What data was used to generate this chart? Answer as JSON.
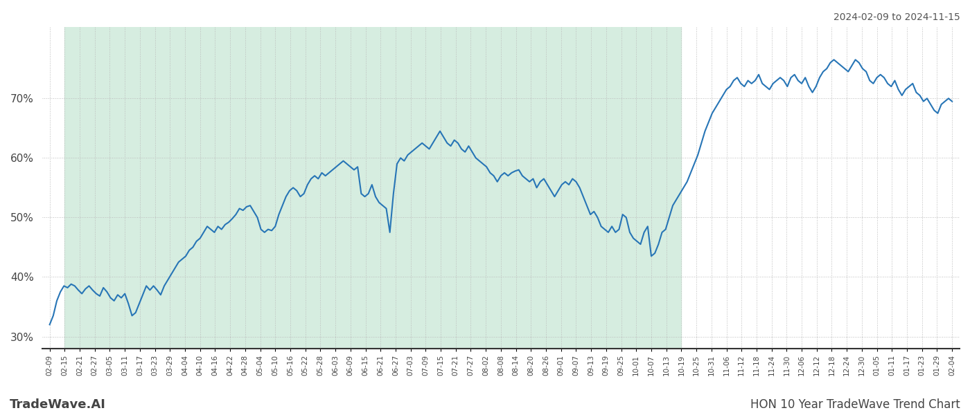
{
  "title_top_right": "2024-02-09 to 2024-11-15",
  "title_bottom_right": "HON 10 Year TradeWave Trend Chart",
  "title_bottom_left": "TradeWave.AI",
  "background_color": "#ffffff",
  "shaded_region_color": "#d6ede0",
  "line_color": "#2775b6",
  "line_width": 1.5,
  "ylim": [
    28,
    82
  ],
  "yticks": [
    30,
    40,
    50,
    60,
    70
  ],
  "grid_color": "#bbbbbb",
  "shaded_x_start_label": "02-15",
  "shaded_x_end_label": "10-19",
  "x_tick_labels": [
    "02-09",
    "02-15",
    "02-21",
    "02-27",
    "03-05",
    "03-11",
    "03-17",
    "03-23",
    "03-29",
    "04-04",
    "04-10",
    "04-16",
    "04-22",
    "04-28",
    "05-04",
    "05-10",
    "05-16",
    "05-22",
    "05-28",
    "06-03",
    "06-09",
    "06-15",
    "06-21",
    "06-27",
    "07-03",
    "07-09",
    "07-15",
    "07-21",
    "07-27",
    "08-02",
    "08-08",
    "08-14",
    "08-20",
    "08-26",
    "09-01",
    "09-07",
    "09-13",
    "09-19",
    "09-25",
    "10-01",
    "10-07",
    "10-13",
    "10-19",
    "10-25",
    "10-31",
    "11-06",
    "11-12",
    "11-18",
    "11-24",
    "11-30",
    "12-06",
    "12-12",
    "12-18",
    "12-24",
    "12-30",
    "01-05",
    "01-11",
    "01-17",
    "01-23",
    "01-29",
    "02-04"
  ],
  "y_values": [
    32.0,
    33.5,
    36.0,
    37.5,
    38.5,
    38.2,
    38.8,
    38.5,
    37.8,
    37.2,
    38.0,
    38.5,
    37.8,
    37.2,
    36.8,
    38.2,
    37.5,
    36.5,
    36.0,
    37.0,
    36.5,
    37.2,
    35.5,
    33.5,
    34.0,
    35.5,
    37.0,
    38.5,
    37.8,
    38.5,
    37.8,
    37.0,
    38.5,
    39.5,
    40.5,
    41.5,
    42.5,
    43.0,
    43.5,
    44.5,
    45.0,
    46.0,
    46.5,
    47.5,
    48.5,
    48.0,
    47.5,
    48.5,
    48.0,
    48.8,
    49.2,
    49.8,
    50.5,
    51.5,
    51.2,
    51.8,
    52.0,
    51.0,
    50.0,
    48.0,
    47.5,
    48.0,
    47.8,
    48.5,
    50.5,
    52.0,
    53.5,
    54.5,
    55.0,
    54.5,
    53.5,
    54.0,
    55.5,
    56.5,
    57.0,
    56.5,
    57.5,
    57.0,
    57.5,
    58.0,
    58.5,
    59.0,
    59.5,
    59.0,
    58.5,
    58.0,
    58.5,
    54.0,
    53.5,
    54.0,
    55.5,
    53.5,
    52.5,
    52.0,
    51.5,
    47.5,
    54.0,
    59.0,
    60.0,
    59.5,
    60.5,
    61.0,
    61.5,
    62.0,
    62.5,
    62.0,
    61.5,
    62.5,
    63.5,
    64.5,
    63.5,
    62.5,
    62.0,
    63.0,
    62.5,
    61.5,
    61.0,
    62.0,
    61.0,
    60.0,
    59.5,
    59.0,
    58.5,
    57.5,
    57.0,
    56.0,
    57.0,
    57.5,
    57.0,
    57.5,
    57.8,
    58.0,
    57.0,
    56.5,
    56.0,
    56.5,
    55.0,
    56.0,
    56.5,
    55.5,
    54.5,
    53.5,
    54.5,
    55.5,
    56.0,
    55.5,
    56.5,
    56.0,
    55.0,
    53.5,
    52.0,
    50.5,
    51.0,
    50.0,
    48.5,
    48.0,
    47.5,
    48.5,
    47.5,
    48.0,
    50.5,
    50.0,
    47.5,
    46.5,
    46.0,
    45.5,
    47.5,
    48.5,
    43.5,
    44.0,
    45.5,
    47.5,
    48.0,
    50.0,
    52.0,
    53.0,
    54.0,
    55.0,
    56.0,
    57.5,
    59.0,
    60.5,
    62.5,
    64.5,
    66.0,
    67.5,
    68.5,
    69.5,
    70.5,
    71.5,
    72.0,
    73.0,
    73.5,
    72.5,
    72.0,
    73.0,
    72.5,
    73.0,
    74.0,
    72.5,
    72.0,
    71.5,
    72.5,
    73.0,
    73.5,
    73.0,
    72.0,
    73.5,
    74.0,
    73.0,
    72.5,
    73.5,
    72.0,
    71.0,
    72.0,
    73.5,
    74.5,
    75.0,
    76.0,
    76.5,
    76.0,
    75.5,
    75.0,
    74.5,
    75.5,
    76.5,
    76.0,
    75.0,
    74.5,
    73.0,
    72.5,
    73.5,
    74.0,
    73.5,
    72.5,
    72.0,
    73.0,
    71.5,
    70.5,
    71.5,
    72.0,
    72.5,
    71.0,
    70.5,
    69.5,
    70.0,
    69.0,
    68.0,
    67.5,
    69.0,
    69.5,
    70.0,
    69.5
  ]
}
